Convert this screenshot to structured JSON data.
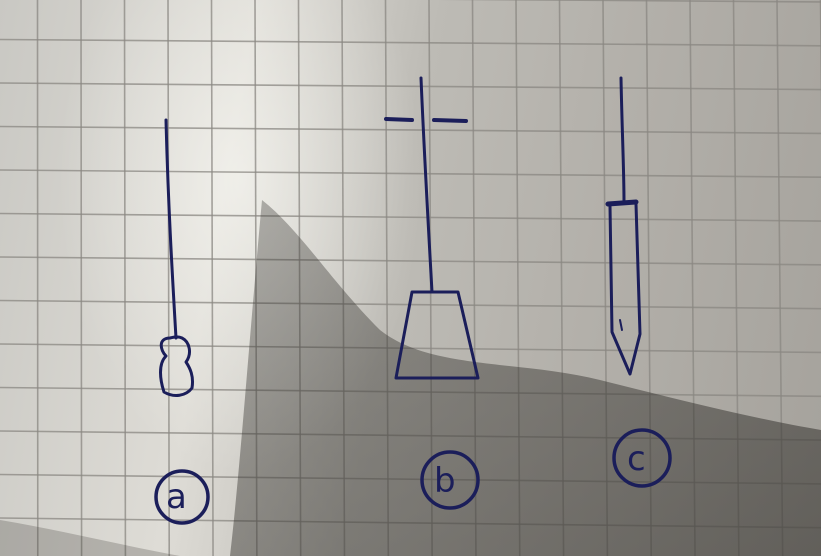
{
  "drawing": {
    "figures": [
      {
        "id": "a",
        "label": "a",
        "description_icon": "thin-rod-with-bulb-end"
      },
      {
        "id": "b",
        "label": "b",
        "description_icon": "rod-with-crossbar-and-trapezoid-base"
      },
      {
        "id": "c",
        "label": "c",
        "description_icon": "rod-with-pointed-sleeve"
      }
    ],
    "colors": {
      "ink": "#1b1e5a",
      "paper_light": "#e2e0da",
      "paper_shadow": "#6f6c66",
      "grid_line": "#8a8782"
    }
  }
}
